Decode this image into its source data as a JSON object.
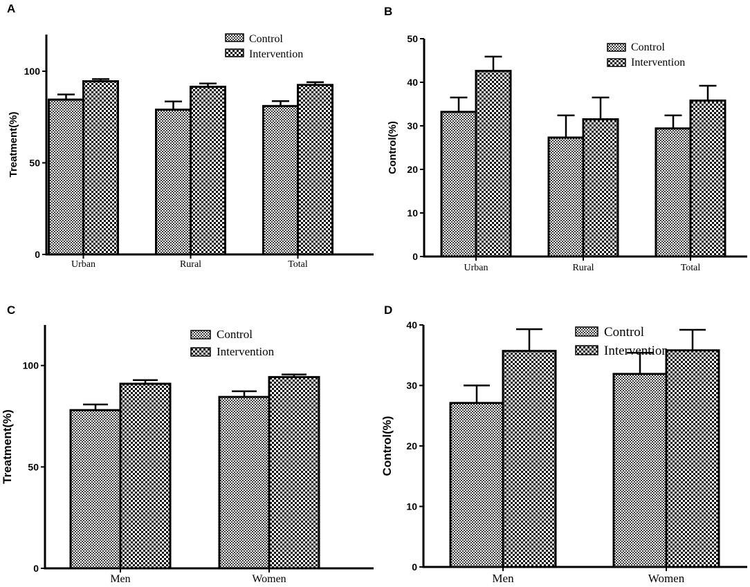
{
  "figure": {
    "panels": [
      "A",
      "B",
      "C",
      "D"
    ]
  },
  "chart_data": [
    {
      "panel": "A",
      "type": "bar",
      "categories": [
        "Urban",
        "Rural",
        "Total"
      ],
      "series": [
        {
          "name": "Control",
          "values": [
            84.5,
            79,
            81
          ],
          "errors": [
            2.8,
            4.5,
            2.7
          ]
        },
        {
          "name": "Intervention",
          "values": [
            94.5,
            91.5,
            92.5
          ],
          "errors": [
            1.2,
            1.8,
            1.5
          ]
        }
      ],
      "title": "",
      "xlabel": "",
      "ylabel": "Treatment(%)",
      "ylim": [
        0,
        120
      ],
      "yticks": [
        0,
        50,
        100
      ],
      "legend": [
        "Control",
        "Intervention"
      ],
      "legend_position": "top-right"
    },
    {
      "panel": "B",
      "type": "bar",
      "categories": [
        "Urban",
        "Rural",
        "Total"
      ],
      "series": [
        {
          "name": "Control",
          "values": [
            33.2,
            27.3,
            29.4
          ],
          "errors": [
            3.3,
            5.1,
            3.0
          ]
        },
        {
          "name": "Intervention",
          "values": [
            42.6,
            31.5,
            35.8
          ],
          "errors": [
            3.3,
            5.0,
            3.4
          ]
        }
      ],
      "title": "",
      "xlabel": "",
      "ylabel": "Control(%)",
      "ylim": [
        0,
        50
      ],
      "yticks": [
        0,
        10,
        20,
        30,
        40,
        50
      ],
      "legend": [
        "Control",
        "Intervention"
      ],
      "legend_position": "top-right"
    },
    {
      "panel": "C",
      "type": "bar",
      "categories": [
        "Men",
        "Women"
      ],
      "series": [
        {
          "name": "Control",
          "values": [
            78,
            84.5
          ],
          "errors": [
            2.8,
            2.8
          ]
        },
        {
          "name": "Intervention",
          "values": [
            91,
            94.3
          ],
          "errors": [
            1.8,
            1.3
          ]
        }
      ],
      "title": "",
      "xlabel": "",
      "ylabel": "Treatment(%)",
      "ylim": [
        0,
        120
      ],
      "yticks": [
        0,
        50,
        100
      ],
      "legend": [
        "Control",
        "Intervention"
      ],
      "legend_position": "top-right"
    },
    {
      "panel": "D",
      "type": "bar",
      "categories": [
        "Men",
        "Women"
      ],
      "series": [
        {
          "name": "Control",
          "values": [
            27.1,
            31.9
          ],
          "errors": [
            2.9,
            3.5
          ]
        },
        {
          "name": "Intervention",
          "values": [
            35.7,
            35.8
          ],
          "errors": [
            3.6,
            3.4
          ]
        }
      ],
      "title": "",
      "xlabel": "",
      "ylabel": "Control(%)",
      "ylim": [
        0,
        40
      ],
      "yticks": [
        0,
        10,
        20,
        30,
        40
      ],
      "legend": [
        "Control",
        "Intervention"
      ],
      "legend_position": "top-right"
    }
  ]
}
